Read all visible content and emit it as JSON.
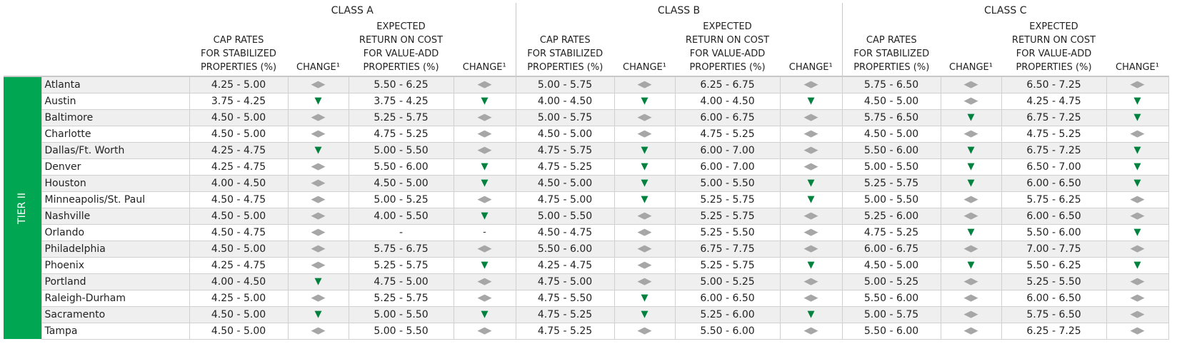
{
  "column_groups": [
    "CLASS A",
    "CLASS B",
    "CLASS C"
  ],
  "column_headers": [
    [
      "CAP RATES",
      "FOR STABILIZED",
      "PROPERTIES (%)"
    ],
    [
      "CHANGE¹"
    ],
    [
      "EXPECTED",
      "RETURN ON COST",
      "FOR VALUE-ADD",
      "PROPERTIES (%)"
    ],
    [
      "CHANGE¹"
    ]
  ],
  "tier": "TIER II",
  "change_colors": {
    "▼": "#00823f",
    "◀▶": "#a6a6a6",
    "-": "#333333"
  },
  "rows": [
    {
      "market": "Atlanta",
      "cells": [
        "4.25 - 5.00",
        "◀▶",
        "5.50 - 6.25",
        "◀▶",
        "5.00 - 5.75",
        "◀▶",
        "6.25 - 6.75",
        "◀▶",
        "5.75 - 6.50",
        "◀▶",
        "6.50 - 7.25",
        "◀▶"
      ]
    },
    {
      "market": "Austin",
      "cells": [
        "3.75 - 4.25",
        "▼",
        "3.75 - 4.25",
        "▼",
        "4.00 - 4.50",
        "▼",
        "4.00 - 4.50",
        "▼",
        "4.50 - 5.00",
        "◀▶",
        "4.25 - 4.75",
        "▼"
      ]
    },
    {
      "market": "Baltimore",
      "cells": [
        "4.50 - 5.00",
        "◀▶",
        "5.25 - 5.75",
        "◀▶",
        "5.00 - 5.75",
        "◀▶",
        "6.00 - 6.75",
        "◀▶",
        "5.75 - 6.50",
        "▼",
        "6.75 - 7.25",
        "▼"
      ]
    },
    {
      "market": "Charlotte",
      "cells": [
        "4.50 - 5.00",
        "◀▶",
        "4.75 - 5.25",
        "◀▶",
        "4.50 - 5.00",
        "◀▶",
        "4.75 - 5.25",
        "◀▶",
        "4.50 - 5.00",
        "◀▶",
        "4.75 - 5.25",
        "◀▶"
      ]
    },
    {
      "market": "Dallas/Ft. Worth",
      "cells": [
        "4.25 - 4.75",
        "▼",
        "5.00 - 5.50",
        "◀▶",
        "4.75 - 5.75",
        "▼",
        "6.00 - 7.00",
        "◀▶",
        "5.50 - 6.00",
        "▼",
        "6.75 - 7.25",
        "▼"
      ]
    },
    {
      "market": "Denver",
      "cells": [
        "4.25 - 4.75",
        "◀▶",
        "5.50 - 6.00",
        "▼",
        "4.75 - 5.25",
        "▼",
        "6.00 - 7.00",
        "◀▶",
        "5.00 - 5.50",
        "▼",
        "6.50 - 7.00",
        "▼"
      ]
    },
    {
      "market": "Houston",
      "cells": [
        "4.00 - 4.50",
        "◀▶",
        "4.50 - 5.00",
        "▼",
        "4.50 - 5.00",
        "▼",
        "5.00 - 5.50",
        "▼",
        "5.25 - 5.75",
        "▼",
        "6.00 - 6.50",
        "▼"
      ]
    },
    {
      "market": "Minneapolis/St. Paul",
      "cells": [
        "4.50 - 4.75",
        "◀▶",
        "5.00 - 5.25",
        "◀▶",
        "4.75 - 5.00",
        "▼",
        "5.25 - 5.75",
        "▼",
        "5.00 - 5.50",
        "◀▶",
        "5.75 - 6.25",
        "◀▶"
      ]
    },
    {
      "market": "Nashville",
      "cells": [
        "4.50 - 5.00",
        "◀▶",
        "4.00 - 5.50",
        "▼",
        "5.00 - 5.50",
        "◀▶",
        "5.25 - 5.75",
        "◀▶",
        "5.25 - 6.00",
        "◀▶",
        "6.00 - 6.50",
        "◀▶"
      ]
    },
    {
      "market": "Orlando",
      "cells": [
        "4.50 - 4.75",
        "◀▶",
        "-",
        "-",
        "4.50 - 4.75",
        "◀▶",
        "5.25 - 5.50",
        "◀▶",
        "4.75 - 5.25",
        "▼",
        "5.50 - 6.00",
        "▼"
      ]
    },
    {
      "market": "Philadelphia",
      "cells": [
        "4.50 - 5.00",
        "◀▶",
        "5.75 - 6.75",
        "◀▶",
        "5.50 - 6.00",
        "◀▶",
        "6.75 - 7.75",
        "◀▶",
        "6.00 - 6.75",
        "◀▶",
        "7.00 - 7.75",
        "◀▶"
      ]
    },
    {
      "market": "Phoenix",
      "cells": [
        "4.25 - 4.75",
        "◀▶",
        "5.25 - 5.75",
        "▼",
        "4.25 - 4.75",
        "◀▶",
        "5.25 - 5.75",
        "▼",
        "4.50 - 5.00",
        "▼",
        "5.50 - 6.25",
        "▼"
      ]
    },
    {
      "market": "Portland",
      "cells": [
        "4.00 - 4.50",
        "▼",
        "4.75 - 5.00",
        "◀▶",
        "4.75 - 5.00",
        "◀▶",
        "5.00 - 5.25",
        "◀▶",
        "5.00 - 5.25",
        "◀▶",
        "5.25 - 5.50",
        "◀▶"
      ]
    },
    {
      "market": "Raleigh-Durham",
      "cells": [
        "4.25 - 5.00",
        "◀▶",
        "5.25 - 5.75",
        "◀▶",
        "4.75 - 5.50",
        "▼",
        "6.00 - 6.50",
        "◀▶",
        "5.50 - 6.00",
        "◀▶",
        "6.00 - 6.50",
        "◀▶"
      ]
    },
    {
      "market": "Sacramento",
      "cells": [
        "4.50 - 5.00",
        "▼",
        "5.00 - 5.50",
        "▼",
        "4.75 - 5.25",
        "▼",
        "5.25 - 6.00",
        "▼",
        "5.00 - 5.75",
        "◀▶",
        "5.75 - 6.50",
        "◀▶"
      ]
    },
    {
      "market": "Tampa",
      "cells": [
        "4.50 - 5.00",
        "◀▶",
        "5.00 - 5.50",
        "◀▶",
        "4.75 - 5.25",
        "◀▶",
        "5.50 - 6.00",
        "◀▶",
        "5.50 - 6.00",
        "◀▶",
        "6.25 - 7.25",
        "◀▶"
      ]
    }
  ]
}
